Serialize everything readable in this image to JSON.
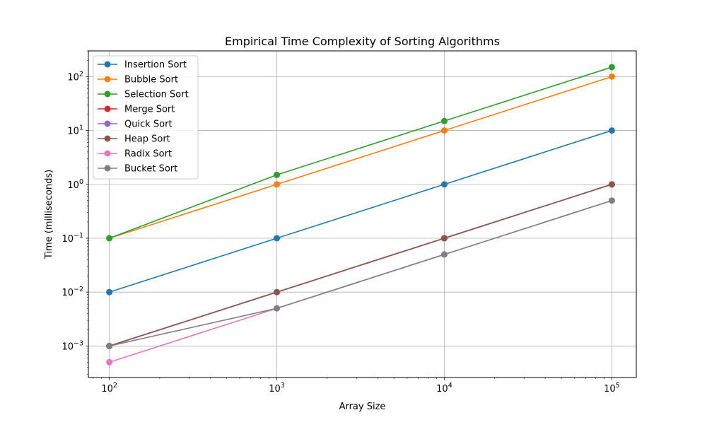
{
  "chart_data": {
    "type": "line",
    "title": "Empirical Time Complexity of Sorting Algorithms",
    "xlabel": "Array Size",
    "ylabel": "Time (milliseconds)",
    "xscale": "log",
    "yscale": "log",
    "xlim": [
      75,
      140000
    ],
    "ylim": [
      0.00026,
      300
    ],
    "grid": true,
    "legend_position": "top-left",
    "x": [
      100,
      1000,
      10000,
      100000
    ],
    "xticks": [
      {
        "value": 100,
        "base": "10",
        "exp": "2"
      },
      {
        "value": 1000,
        "base": "10",
        "exp": "3"
      },
      {
        "value": 10000,
        "base": "10",
        "exp": "4"
      },
      {
        "value": 100000,
        "base": "10",
        "exp": "5"
      }
    ],
    "yticks": [
      {
        "value": 0.001,
        "base": "10",
        "exp": "−3"
      },
      {
        "value": 0.01,
        "base": "10",
        "exp": "−2"
      },
      {
        "value": 0.1,
        "base": "10",
        "exp": "−1"
      },
      {
        "value": 1,
        "base": "10",
        "exp": "0"
      },
      {
        "value": 10,
        "base": "10",
        "exp": "1"
      },
      {
        "value": 100,
        "base": "10",
        "exp": "2"
      }
    ],
    "series": [
      {
        "name": "Insertion Sort",
        "color": "#1f77b4",
        "values": [
          0.01,
          0.1,
          1,
          10
        ]
      },
      {
        "name": "Bubble Sort",
        "color": "#ff7f0e",
        "values": [
          0.1,
          1,
          10,
          100
        ]
      },
      {
        "name": "Selection Sort",
        "color": "#2ca02c",
        "values": [
          0.1,
          1.5,
          15,
          150
        ]
      },
      {
        "name": "Merge Sort",
        "color": "#d62728",
        "values": [
          0.001,
          0.01,
          0.1,
          1
        ]
      },
      {
        "name": "Quick Sort",
        "color": "#9467bd",
        "values": [
          0.001,
          0.01,
          0.1,
          1
        ]
      },
      {
        "name": "Heap Sort",
        "color": "#8c564b",
        "values": [
          0.001,
          0.01,
          0.1,
          1
        ]
      },
      {
        "name": "Radix Sort",
        "color": "#e377c2",
        "values": [
          0.0005,
          0.005,
          0.05,
          0.5
        ]
      },
      {
        "name": "Bucket Sort",
        "color": "#7f7f7f",
        "values": [
          0.001,
          0.005,
          0.05,
          0.5
        ]
      }
    ]
  }
}
